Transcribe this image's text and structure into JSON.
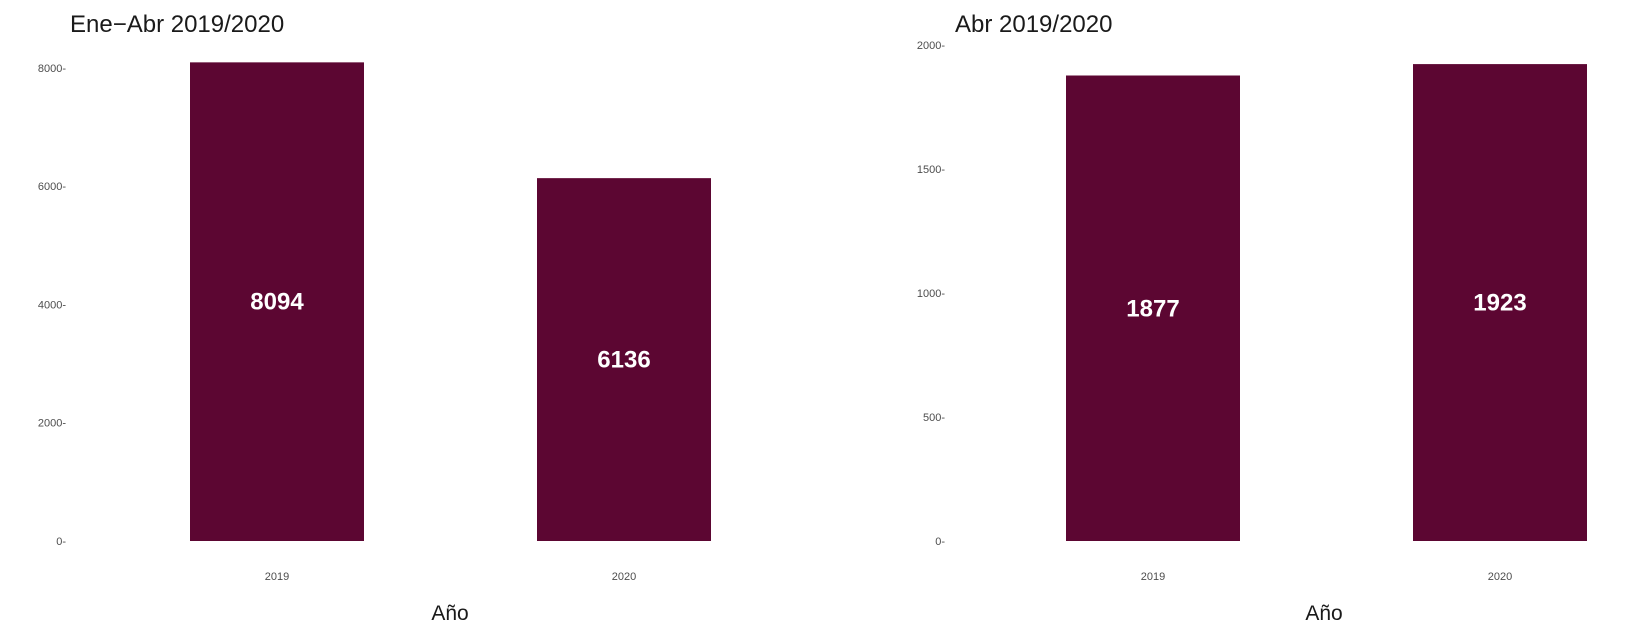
{
  "chart_data": [
    {
      "type": "bar",
      "subtitle": "Ene−Abr 2019/2020",
      "categories": [
        "2019",
        "2020"
      ],
      "values": [
        8094,
        6136
      ],
      "data_labels": [
        "8094",
        "6136"
      ],
      "xlabel": "Año",
      "ylabel": "",
      "ylim": [
        0,
        8100
      ],
      "yticks": [
        0,
        2000,
        4000,
        6000,
        8000
      ],
      "ytick_labels": [
        "0",
        "2000",
        "4000",
        "6000",
        "8000"
      ],
      "bar_color": "#5c0632",
      "grid": false,
      "legend": "none"
    },
    {
      "type": "bar",
      "subtitle": "Abr 2019/2020",
      "categories": [
        "2019",
        "2020"
      ],
      "values": [
        1877,
        1923
      ],
      "data_labels": [
        "1877",
        "1923"
      ],
      "xlabel": "Año",
      "ylabel": "",
      "ylim": [
        0,
        2000
      ],
      "yticks": [
        0,
        500,
        1000,
        1500,
        2000
      ],
      "ytick_labels": [
        "0",
        "500",
        "1000",
        "1500",
        "2000"
      ],
      "bar_color": "#5c0632",
      "grid": false,
      "legend": "none"
    }
  ]
}
